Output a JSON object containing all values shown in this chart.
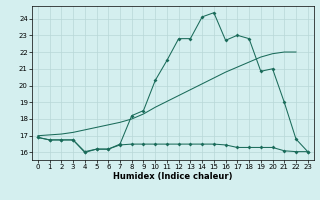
{
  "xlabel": "Humidex (Indice chaleur)",
  "xlim": [
    -0.5,
    23.5
  ],
  "ylim": [
    15.55,
    24.75
  ],
  "yticks": [
    16,
    17,
    18,
    19,
    20,
    21,
    22,
    23,
    24
  ],
  "xticks": [
    0,
    1,
    2,
    3,
    4,
    5,
    6,
    7,
    8,
    9,
    10,
    11,
    12,
    13,
    14,
    15,
    16,
    17,
    18,
    19,
    20,
    21,
    22,
    23
  ],
  "bg_color": "#d4efef",
  "grid_color": "#b8d8d8",
  "line_color": "#1a6b5a",
  "line1_x": [
    0,
    1,
    2,
    3,
    4,
    5,
    6,
    7,
    8,
    9,
    10,
    11,
    12,
    13,
    14,
    15,
    16,
    17,
    18,
    19,
    20,
    21,
    22,
    23
  ],
  "line1_y": [
    16.9,
    16.75,
    16.75,
    16.75,
    16.0,
    16.2,
    16.2,
    16.5,
    18.2,
    18.5,
    20.3,
    21.5,
    22.8,
    22.8,
    24.1,
    24.35,
    22.7,
    23.0,
    22.8,
    20.85,
    21.0,
    19.0,
    16.8,
    16.05
  ],
  "line2_x": [
    0,
    1,
    2,
    3,
    4,
    5,
    6,
    7,
    8,
    9,
    10,
    11,
    12,
    13,
    14,
    15,
    16,
    17,
    18,
    19,
    20,
    21,
    22,
    23
  ],
  "line2_y": [
    17.0,
    17.05,
    17.1,
    17.2,
    17.35,
    17.5,
    17.65,
    17.8,
    18.0,
    18.3,
    18.7,
    19.05,
    19.4,
    19.75,
    20.1,
    20.45,
    20.8,
    21.1,
    21.4,
    21.7,
    21.9,
    22.0,
    22.0,
    null
  ],
  "line3_x": [
    0,
    1,
    2,
    3,
    4,
    5,
    6,
    7,
    8,
    9,
    10,
    11,
    12,
    13,
    14,
    15,
    16,
    17,
    18,
    19,
    20,
    21,
    22,
    23
  ],
  "line3_y": [
    16.9,
    16.75,
    16.75,
    16.75,
    16.05,
    16.2,
    16.2,
    16.45,
    16.5,
    16.5,
    16.5,
    16.5,
    16.5,
    16.5,
    16.5,
    16.5,
    16.45,
    16.3,
    16.3,
    16.3,
    16.3,
    16.1,
    16.05,
    16.05
  ]
}
